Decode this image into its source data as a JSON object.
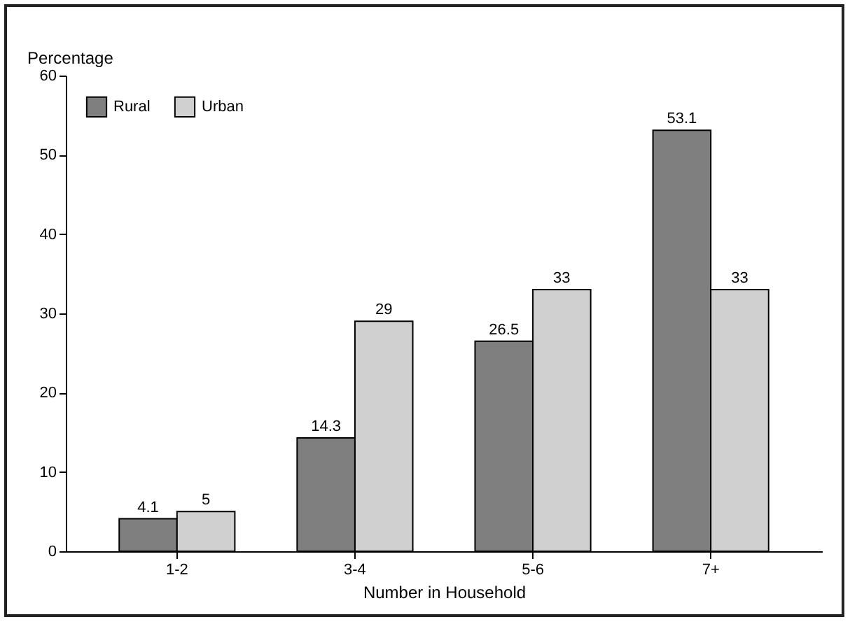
{
  "chart_data": {
    "type": "bar",
    "categories": [
      "1-2",
      "3-4",
      "5-6",
      "7+"
    ],
    "series": [
      {
        "name": "Rural",
        "color": "#7f7f7f",
        "values": [
          4.1,
          14.3,
          26.5,
          53.1
        ]
      },
      {
        "name": "Urban",
        "color": "#d0d0d0",
        "values": [
          5,
          29,
          33,
          33
        ]
      }
    ],
    "xlabel": "Number in Household",
    "ylabel": "Percentage",
    "ylim": [
      0,
      60
    ],
    "yticks": [
      0,
      10,
      20,
      30,
      40,
      50,
      60
    ],
    "data_labels": true,
    "grid": false,
    "legend": "top left"
  }
}
